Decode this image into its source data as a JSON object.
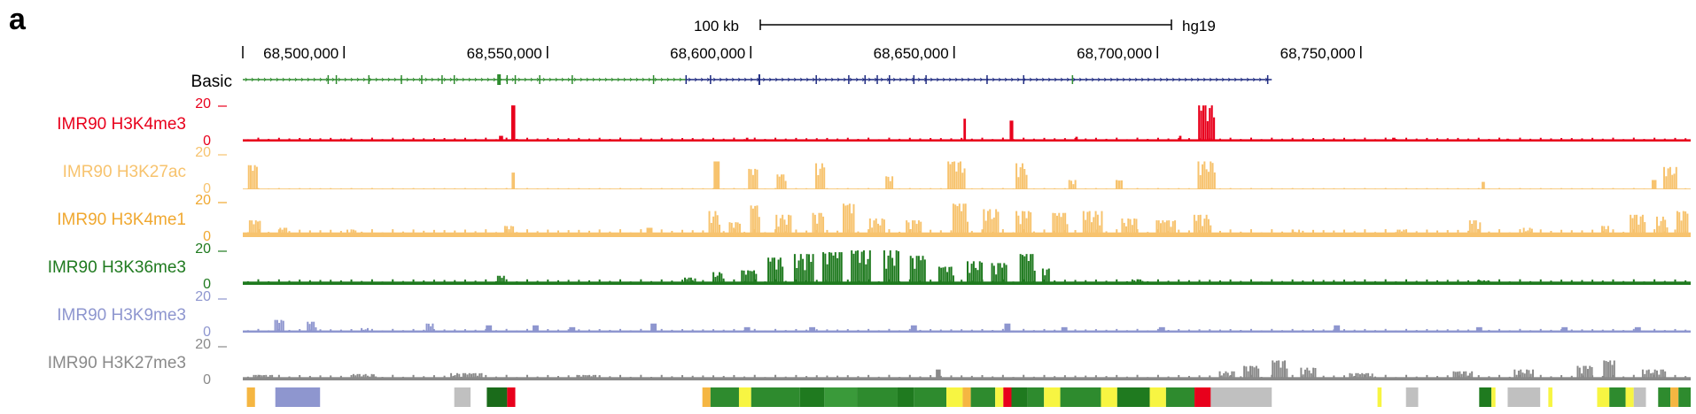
{
  "panel_label": "a",
  "scale_bar": {
    "label": "100 kb",
    "assembly": "hg19"
  },
  "colors": {
    "gene_green": "#2e8b2e",
    "gene_navy": "#1e2a80",
    "H3K4me3": "#e8001c",
    "H3K27ac": "#f7c36e",
    "H3K4me1": "#f7c36e",
    "H3K36me3": "#1f7a1f",
    "H3K9me3": "#8e96cf",
    "H3K27me3": "#8a8a8a",
    "label_H3K4me1": "#f0a830"
  },
  "chart_data": {
    "type": "area",
    "title": "",
    "x_axis": {
      "unit": "bp",
      "range": [
        68475000,
        68831000
      ],
      "tick_labels": [
        "68,500,000",
        "68,550,000",
        "68,600,000",
        "68,650,000",
        "68,700,000",
        "68,750,000"
      ],
      "tick_values": [
        68500000,
        68550000,
        68600000,
        68650000,
        68700000,
        68750000
      ]
    },
    "gene_track": {
      "name": "Basic",
      "segments": [
        {
          "color": "green",
          "start": 68475000,
          "end": 68584000
        },
        {
          "color": "navy",
          "start": 68584000,
          "end": 68728000
        }
      ]
    },
    "series": [
      {
        "name": "IMR90 H3K4me3",
        "ylim": [
          0,
          20
        ],
        "ytick_labels": [
          "20",
          "0"
        ],
        "baseline": 1.2,
        "peaks": [
          {
            "x": 68541500,
            "width": 1000,
            "height": 19
          },
          {
            "x": 68538500,
            "width": 1000,
            "height": 3
          },
          {
            "x": 68652500,
            "width": 600,
            "height": 12
          },
          {
            "x": 68664000,
            "width": 900,
            "height": 11
          },
          {
            "x": 68712000,
            "width": 4200,
            "height": 19
          },
          {
            "x": 68705500,
            "width": 600,
            "height": 3
          },
          {
            "x": 68680000,
            "width": 600,
            "height": 2.5
          },
          {
            "x": 68599000,
            "width": 600,
            "height": 2
          },
          {
            "x": 68758000,
            "width": 800,
            "height": 2
          },
          {
            "x": 68786000,
            "width": 600,
            "height": 1.5
          },
          {
            "x": 68500000,
            "width": 600,
            "height": 1.5
          }
        ]
      },
      {
        "name": "IMR90 H3K27ac",
        "ylim": [
          0,
          20
        ],
        "ytick_labels": [
          "20",
          "0"
        ],
        "baseline": 0.4,
        "peaks": [
          {
            "x": 68477500,
            "width": 2500,
            "height": 13
          },
          {
            "x": 68541500,
            "width": 800,
            "height": 9
          },
          {
            "x": 68591500,
            "width": 1500,
            "height": 15
          },
          {
            "x": 68600500,
            "width": 2500,
            "height": 11
          },
          {
            "x": 68607500,
            "width": 2500,
            "height": 8
          },
          {
            "x": 68617000,
            "width": 2500,
            "height": 14
          },
          {
            "x": 68634000,
            "width": 2000,
            "height": 7
          },
          {
            "x": 68650500,
            "width": 4500,
            "height": 15
          },
          {
            "x": 68666500,
            "width": 3000,
            "height": 14
          },
          {
            "x": 68679000,
            "width": 2000,
            "height": 5
          },
          {
            "x": 68690500,
            "width": 1800,
            "height": 5
          },
          {
            "x": 68712000,
            "width": 4500,
            "height": 15
          },
          {
            "x": 68780000,
            "width": 800,
            "height": 4
          },
          {
            "x": 68822000,
            "width": 1200,
            "height": 5
          },
          {
            "x": 68826000,
            "width": 3500,
            "height": 12
          }
        ]
      },
      {
        "name": "IMR90 H3K4me1",
        "ylim": [
          0,
          20
        ],
        "ytick_labels": [
          "20",
          "0"
        ],
        "baseline": 2.5,
        "peaks": [
          {
            "x": 68478000,
            "width": 3000,
            "height": 9
          },
          {
            "x": 68485000,
            "width": 2000,
            "height": 5
          },
          {
            "x": 68502000,
            "width": 3000,
            "height": 4
          },
          {
            "x": 68540500,
            "width": 2500,
            "height": 6
          },
          {
            "x": 68575000,
            "width": 1500,
            "height": 5
          },
          {
            "x": 68591000,
            "width": 3000,
            "height": 14
          },
          {
            "x": 68596000,
            "width": 3000,
            "height": 8
          },
          {
            "x": 68601000,
            "width": 2500,
            "height": 17
          },
          {
            "x": 68608000,
            "width": 4000,
            "height": 12
          },
          {
            "x": 68616500,
            "width": 3000,
            "height": 13
          },
          {
            "x": 68624000,
            "width": 3000,
            "height": 18
          },
          {
            "x": 68631000,
            "width": 4000,
            "height": 10
          },
          {
            "x": 68640000,
            "width": 4000,
            "height": 9
          },
          {
            "x": 68651500,
            "width": 4000,
            "height": 18
          },
          {
            "x": 68659000,
            "width": 4000,
            "height": 15
          },
          {
            "x": 68667000,
            "width": 4000,
            "height": 14
          },
          {
            "x": 68676000,
            "width": 4000,
            "height": 13
          },
          {
            "x": 68684000,
            "width": 5000,
            "height": 14
          },
          {
            "x": 68693000,
            "width": 4000,
            "height": 10
          },
          {
            "x": 68702000,
            "width": 5000,
            "height": 9
          },
          {
            "x": 68711000,
            "width": 4500,
            "height": 12
          },
          {
            "x": 68734000,
            "width": 2000,
            "height": 4
          },
          {
            "x": 68760000,
            "width": 2500,
            "height": 4
          },
          {
            "x": 68778000,
            "width": 3000,
            "height": 9
          },
          {
            "x": 68791000,
            "width": 2500,
            "height": 5
          },
          {
            "x": 68810000,
            "width": 2000,
            "height": 6
          },
          {
            "x": 68818000,
            "width": 4000,
            "height": 12
          },
          {
            "x": 68824000,
            "width": 3000,
            "height": 11
          },
          {
            "x": 68829000,
            "width": 3000,
            "height": 14
          }
        ]
      },
      {
        "name": "IMR90 H3K36me3",
        "ylim": [
          0,
          20
        ],
        "ytick_labels": [
          "20",
          "0"
        ],
        "baseline": 1.8,
        "peaks": [
          {
            "x": 68538500,
            "width": 2000,
            "height": 5
          },
          {
            "x": 68585000,
            "width": 3000,
            "height": 4
          },
          {
            "x": 68592000,
            "width": 3000,
            "height": 7
          },
          {
            "x": 68599500,
            "width": 4000,
            "height": 8
          },
          {
            "x": 68606000,
            "width": 4000,
            "height": 15
          },
          {
            "x": 68613000,
            "width": 5000,
            "height": 17
          },
          {
            "x": 68620000,
            "width": 5000,
            "height": 18
          },
          {
            "x": 68627000,
            "width": 5000,
            "height": 19
          },
          {
            "x": 68634500,
            "width": 4000,
            "height": 19
          },
          {
            "x": 68641000,
            "width": 4000,
            "height": 16
          },
          {
            "x": 68648000,
            "width": 4000,
            "height": 10
          },
          {
            "x": 68655000,
            "width": 4000,
            "height": 13
          },
          {
            "x": 68661000,
            "width": 4000,
            "height": 12
          },
          {
            "x": 68668000,
            "width": 4000,
            "height": 17
          },
          {
            "x": 68672500,
            "width": 2000,
            "height": 9
          },
          {
            "x": 68695000,
            "width": 3000,
            "height": 3
          },
          {
            "x": 68780000,
            "width": 3000,
            "height": 2.5
          }
        ]
      },
      {
        "name": "IMR90 H3K9me3",
        "ylim": [
          0,
          20
        ],
        "ytick_labels": [
          "20",
          "0"
        ],
        "baseline": 1.2,
        "peaks": [
          {
            "x": 68484000,
            "width": 2500,
            "height": 7
          },
          {
            "x": 68492000,
            "width": 2500,
            "height": 6
          },
          {
            "x": 68505000,
            "width": 2000,
            "height": 2.5
          },
          {
            "x": 68521000,
            "width": 2000,
            "height": 5
          },
          {
            "x": 68535500,
            "width": 1500,
            "height": 4
          },
          {
            "x": 68547000,
            "width": 1500,
            "height": 4
          },
          {
            "x": 68556000,
            "width": 1500,
            "height": 3
          },
          {
            "x": 68576000,
            "width": 1500,
            "height": 5
          },
          {
            "x": 68599000,
            "width": 1500,
            "height": 3
          },
          {
            "x": 68615000,
            "width": 1500,
            "height": 3
          },
          {
            "x": 68640000,
            "width": 1500,
            "height": 4
          },
          {
            "x": 68663000,
            "width": 1500,
            "height": 5
          },
          {
            "x": 68677000,
            "width": 1500,
            "height": 3
          },
          {
            "x": 68701000,
            "width": 1500,
            "height": 3
          },
          {
            "x": 68744000,
            "width": 1500,
            "height": 4
          },
          {
            "x": 68779000,
            "width": 1500,
            "height": 3
          },
          {
            "x": 68800000,
            "width": 1500,
            "height": 3
          },
          {
            "x": 68818000,
            "width": 1500,
            "height": 3
          }
        ]
      },
      {
        "name": "IMR90 H3K27me3",
        "ylim": [
          0,
          20
        ],
        "ytick_labels": [
          "20",
          "0"
        ],
        "baseline": 1.8,
        "peaks": [
          {
            "x": 68480000,
            "width": 5000,
            "height": 3
          },
          {
            "x": 68505000,
            "width": 6000,
            "height": 3.5
          },
          {
            "x": 68530000,
            "width": 8000,
            "height": 4
          },
          {
            "x": 68560000,
            "width": 6000,
            "height": 3
          },
          {
            "x": 68646000,
            "width": 1200,
            "height": 6
          },
          {
            "x": 68717000,
            "width": 4000,
            "height": 5
          },
          {
            "x": 68723000,
            "width": 4000,
            "height": 8
          },
          {
            "x": 68730000,
            "width": 4000,
            "height": 11
          },
          {
            "x": 68737000,
            "width": 4000,
            "height": 7
          },
          {
            "x": 68750000,
            "width": 6000,
            "height": 4
          },
          {
            "x": 68775000,
            "width": 5000,
            "height": 5
          },
          {
            "x": 68790000,
            "width": 5000,
            "height": 6
          },
          {
            "x": 68805000,
            "width": 4000,
            "height": 8
          },
          {
            "x": 68811000,
            "width": 3000,
            "height": 11
          },
          {
            "x": 68822000,
            "width": 6000,
            "height": 6
          }
        ]
      }
    ],
    "chromatin_states": [
      {
        "start": 68476000,
        "end": 68478000,
        "color": "#f5b642"
      },
      {
        "start": 68483000,
        "end": 68494000,
        "color": "#8e96cf"
      },
      {
        "start": 68527000,
        "end": 68531000,
        "color": "#c0c0c0"
      },
      {
        "start": 68535000,
        "end": 68540000,
        "color": "#1a6b1a"
      },
      {
        "start": 68540000,
        "end": 68542000,
        "color": "#e8001c"
      },
      {
        "start": 68588000,
        "end": 68590000,
        "color": "#f5b642"
      },
      {
        "start": 68590000,
        "end": 68597000,
        "color": "#2e8b2e"
      },
      {
        "start": 68597000,
        "end": 68600000,
        "color": "#f7f542"
      },
      {
        "start": 68600000,
        "end": 68612000,
        "color": "#2e8b2e"
      },
      {
        "start": 68612000,
        "end": 68618000,
        "color": "#1f7a1f"
      },
      {
        "start": 68618000,
        "end": 68626000,
        "color": "#3a9a3a"
      },
      {
        "start": 68626000,
        "end": 68636000,
        "color": "#2e8b2e"
      },
      {
        "start": 68636000,
        "end": 68640000,
        "color": "#1f7a1f"
      },
      {
        "start": 68640000,
        "end": 68648000,
        "color": "#2e8b2e"
      },
      {
        "start": 68648000,
        "end": 68652000,
        "color": "#f7f542"
      },
      {
        "start": 68652000,
        "end": 68654000,
        "color": "#f5b642"
      },
      {
        "start": 68654000,
        "end": 68660000,
        "color": "#2e8b2e"
      },
      {
        "start": 68660000,
        "end": 68662000,
        "color": "#f7f542"
      },
      {
        "start": 68662000,
        "end": 68664000,
        "color": "#e8001c"
      },
      {
        "start": 68664000,
        "end": 68668000,
        "color": "#1f7a1f"
      },
      {
        "start": 68668000,
        "end": 68672000,
        "color": "#2e8b2e"
      },
      {
        "start": 68672000,
        "end": 68676000,
        "color": "#f7f542"
      },
      {
        "start": 68676000,
        "end": 68686000,
        "color": "#2e8b2e"
      },
      {
        "start": 68686000,
        "end": 68690000,
        "color": "#f7f542"
      },
      {
        "start": 68690000,
        "end": 68698000,
        "color": "#1f7a1f"
      },
      {
        "start": 68698000,
        "end": 68702000,
        "color": "#f7f542"
      },
      {
        "start": 68702000,
        "end": 68709000,
        "color": "#2e8b2e"
      },
      {
        "start": 68709000,
        "end": 68713000,
        "color": "#e8001c"
      },
      {
        "start": 68713000,
        "end": 68728000,
        "color": "#c0c0c0"
      },
      {
        "start": 68754000,
        "end": 68755000,
        "color": "#f7f542"
      },
      {
        "start": 68761000,
        "end": 68764000,
        "color": "#c0c0c0"
      },
      {
        "start": 68779000,
        "end": 68782000,
        "color": "#1f7a1f"
      },
      {
        "start": 68782000,
        "end": 68783000,
        "color": "#f7f542"
      },
      {
        "start": 68786000,
        "end": 68794000,
        "color": "#c0c0c0"
      },
      {
        "start": 68796000,
        "end": 68797000,
        "color": "#f7f542"
      },
      {
        "start": 68808000,
        "end": 68811000,
        "color": "#f7f542"
      },
      {
        "start": 68811000,
        "end": 68815000,
        "color": "#2e8b2e"
      },
      {
        "start": 68815000,
        "end": 68817000,
        "color": "#f7f542"
      },
      {
        "start": 68817000,
        "end": 68820000,
        "color": "#c0c0c0"
      },
      {
        "start": 68823000,
        "end": 68826000,
        "color": "#2e8b2e"
      },
      {
        "start": 68826000,
        "end": 68828000,
        "color": "#f5b642"
      },
      {
        "start": 68828000,
        "end": 68831000,
        "color": "#2e8b2e"
      }
    ]
  }
}
